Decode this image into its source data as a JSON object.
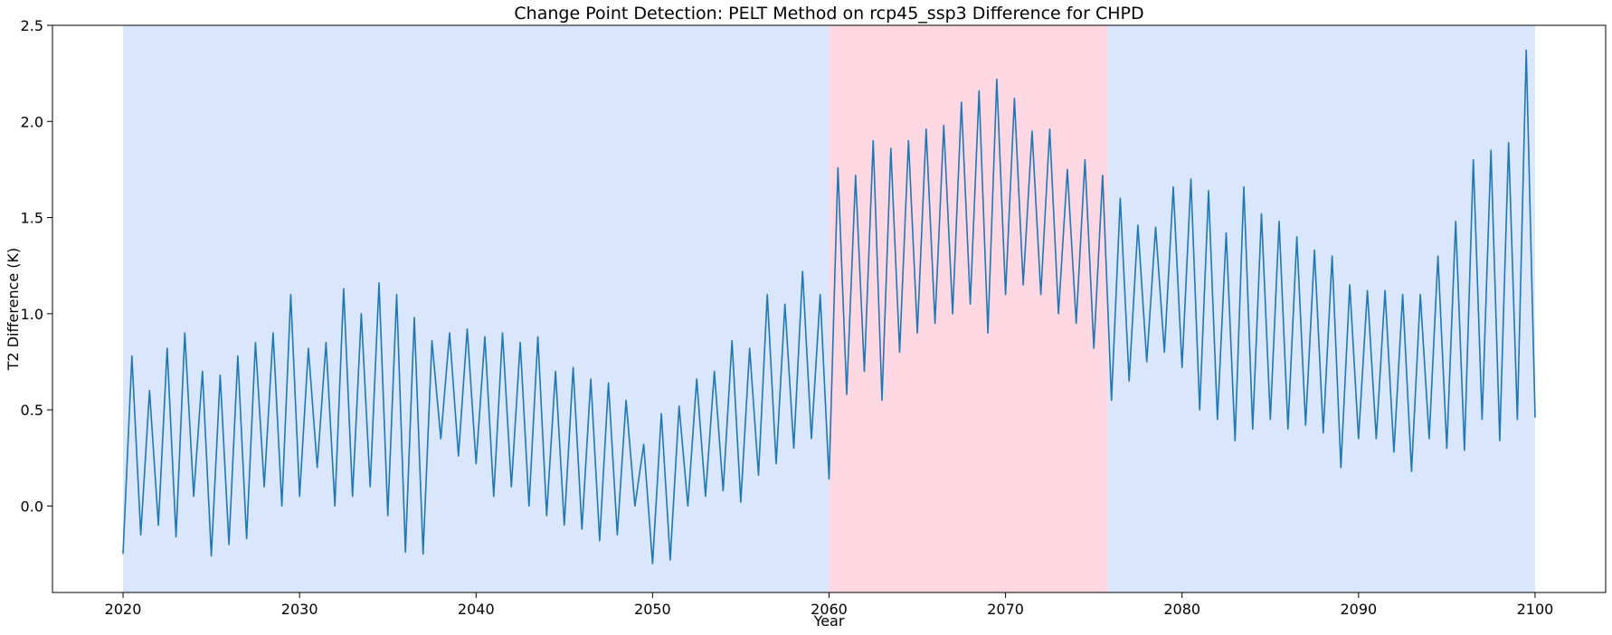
{
  "chart_data": {
    "type": "line",
    "title": "Change Point Detection: PELT Method on rcp45_ssp3 Difference for CHPD",
    "xlabel": "Year",
    "ylabel": "T2 Difference (K)",
    "xlim": [
      2016,
      2104
    ],
    "ylim": [
      -0.45,
      2.5
    ],
    "x_ticks": [
      2020,
      2030,
      2040,
      2050,
      2060,
      2070,
      2080,
      2090,
      2100
    ],
    "y_ticks": [
      0.0,
      0.5,
      1.0,
      1.5,
      2.0,
      2.5
    ],
    "x_tick_labels": [
      "2020",
      "2030",
      "2040",
      "2050",
      "2060",
      "2070",
      "2080",
      "2090",
      "2100"
    ],
    "y_tick_labels": [
      "0.0",
      "0.5",
      "1.0",
      "1.5",
      "2.0",
      "2.5"
    ],
    "grid": false,
    "line_color": "#1f77b4",
    "segments": [
      {
        "start": 2020.0,
        "end": 2060.0,
        "color": "#dae6fb"
      },
      {
        "start": 2060.0,
        "end": 2075.8,
        "color": "#fdd8e3"
      },
      {
        "start": 2075.8,
        "end": 2100.0,
        "color": "#dae6fb"
      }
    ],
    "series": [
      {
        "x": [
          2020.0,
          2020.5,
          2021.0,
          2021.5,
          2022.0,
          2022.5,
          2023.0,
          2023.5,
          2024.0,
          2024.5,
          2025.0,
          2025.5,
          2026.0,
          2026.5,
          2027.0,
          2027.5,
          2028.0,
          2028.5,
          2029.0,
          2029.5,
          2030.0,
          2030.5,
          2031.0,
          2031.5,
          2032.0,
          2032.5,
          2033.0,
          2033.5,
          2034.0,
          2034.5,
          2035.0,
          2035.5,
          2036.0,
          2036.5,
          2037.0,
          2037.5,
          2038.0,
          2038.5,
          2039.0,
          2039.5,
          2040.0,
          2040.5,
          2041.0,
          2041.5,
          2042.0,
          2042.5,
          2043.0,
          2043.5,
          2044.0,
          2044.5,
          2045.0,
          2045.5,
          2046.0,
          2046.5,
          2047.0,
          2047.5,
          2048.0,
          2048.5,
          2049.0,
          2049.5,
          2050.0,
          2050.5,
          2051.0,
          2051.5,
          2052.0,
          2052.5,
          2053.0,
          2053.5,
          2054.0,
          2054.5,
          2055.0,
          2055.5,
          2056.0,
          2056.5,
          2057.0,
          2057.5,
          2058.0,
          2058.5,
          2059.0,
          2059.5,
          2060.0,
          2060.5,
          2061.0,
          2061.5,
          2062.0,
          2062.5,
          2063.0,
          2063.5,
          2064.0,
          2064.5,
          2065.0,
          2065.5,
          2066.0,
          2066.5,
          2067.0,
          2067.5,
          2068.0,
          2068.5,
          2069.0,
          2069.5,
          2070.0,
          2070.5,
          2071.0,
          2071.5,
          2072.0,
          2072.5,
          2073.0,
          2073.5,
          2074.0,
          2074.5,
          2075.0,
          2075.5,
          2076.0,
          2076.5,
          2077.0,
          2077.5,
          2078.0,
          2078.5,
          2079.0,
          2079.5,
          2080.0,
          2080.5,
          2081.0,
          2081.5,
          2082.0,
          2082.5,
          2083.0,
          2083.5,
          2084.0,
          2084.5,
          2085.0,
          2085.5,
          2086.0,
          2086.5,
          2087.0,
          2087.5,
          2088.0,
          2088.5,
          2089.0,
          2089.5,
          2090.0,
          2090.5,
          2091.0,
          2091.5,
          2092.0,
          2092.5,
          2093.0,
          2093.5,
          2094.0,
          2094.5,
          2095.0,
          2095.5,
          2096.0,
          2096.5,
          2097.0,
          2097.5,
          2098.0,
          2098.5,
          2099.0,
          2099.5,
          2100.0
        ],
        "y": [
          -0.25,
          0.78,
          -0.15,
          0.6,
          -0.1,
          0.82,
          -0.16,
          0.9,
          0.05,
          0.7,
          -0.26,
          0.68,
          -0.2,
          0.78,
          -0.17,
          0.85,
          0.1,
          0.9,
          0.0,
          1.1,
          0.05,
          0.82,
          0.2,
          0.85,
          0.0,
          1.13,
          0.05,
          1.0,
          0.1,
          1.16,
          -0.05,
          1.1,
          -0.24,
          0.98,
          -0.25,
          0.86,
          0.35,
          0.9,
          0.26,
          0.92,
          0.22,
          0.88,
          0.05,
          0.9,
          0.1,
          0.85,
          0.0,
          0.88,
          -0.05,
          0.7,
          -0.1,
          0.72,
          -0.12,
          0.66,
          -0.18,
          0.64,
          -0.15,
          0.55,
          0.0,
          0.32,
          -0.3,
          0.48,
          -0.28,
          0.52,
          0.0,
          0.66,
          0.05,
          0.7,
          0.08,
          0.86,
          0.02,
          0.82,
          0.16,
          1.1,
          0.22,
          1.05,
          0.3,
          1.22,
          0.35,
          1.1,
          0.14,
          1.76,
          0.58,
          1.72,
          0.7,
          1.9,
          0.55,
          1.86,
          0.8,
          1.9,
          0.9,
          1.96,
          0.95,
          1.98,
          1.0,
          2.1,
          1.05,
          2.16,
          0.9,
          2.22,
          1.1,
          2.12,
          1.15,
          1.95,
          1.1,
          1.96,
          1.0,
          1.75,
          0.95,
          1.8,
          0.82,
          1.72,
          0.55,
          1.6,
          0.65,
          1.46,
          0.75,
          1.45,
          0.8,
          1.66,
          0.72,
          1.7,
          0.5,
          1.64,
          0.45,
          1.42,
          0.34,
          1.66,
          0.4,
          1.52,
          0.45,
          1.48,
          0.4,
          1.4,
          0.42,
          1.33,
          0.38,
          1.3,
          0.2,
          1.15,
          0.35,
          1.12,
          0.35,
          1.12,
          0.28,
          1.1,
          0.18,
          1.1,
          0.35,
          1.3,
          0.3,
          1.48,
          0.29,
          1.8,
          0.45,
          1.85,
          0.34,
          1.89,
          0.45,
          2.37,
          0.46
        ]
      }
    ]
  }
}
